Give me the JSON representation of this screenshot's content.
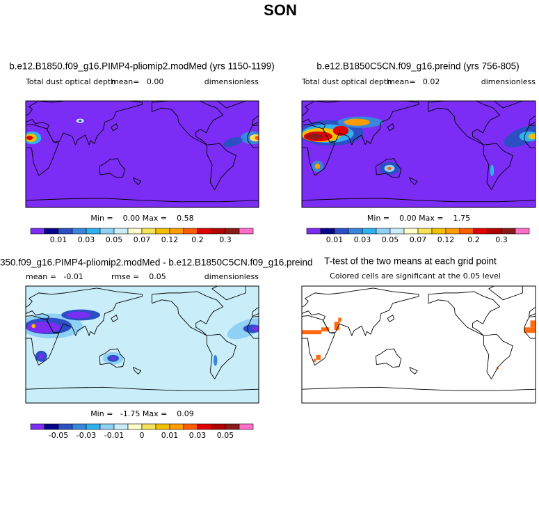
{
  "title": "SON",
  "panels": [
    {
      "title": "b.e12.B1850.f09_g16.PIMP4-pliomip2.modMed (yrs 1150-1199)",
      "left": "Total dust optical depth",
      "center": "mean=   0.00",
      "right": "dimensionless",
      "stats": "Min =    0.00 Max =    0.58",
      "colorbar": {
        "colors": [
          "#7b2cf5",
          "#06068c",
          "#2d4fc6",
          "#3a86dc",
          "#2fb2ef",
          "#8fd0f5",
          "#c9eefa",
          "#fffccc",
          "#f6e25a",
          "#f2c000",
          "#ff9c00",
          "#ff5c00",
          "#e00000",
          "#b00000",
          "#8b1a1a",
          "#ff6ec7"
        ],
        "labels": [
          "0.01",
          "0.03",
          "0.05",
          "0.07",
          "0.12",
          "0.2",
          "0.3"
        ]
      }
    },
    {
      "title": "b.e12.B1850C5CN.f09_g16.preind (yrs 756-805)",
      "left": "Total dust optical depth",
      "center": "mean=   0.02",
      "right": "dimensionless",
      "stats": "Min =    0.00 Max =    1.75",
      "colorbar": {
        "colors": [
          "#7b2cf5",
          "#06068c",
          "#2d4fc6",
          "#3a86dc",
          "#2fb2ef",
          "#8fd0f5",
          "#c9eefa",
          "#fffccc",
          "#f6e25a",
          "#f2c000",
          "#ff9c00",
          "#ff5c00",
          "#e00000",
          "#b00000",
          "#8b1a1a",
          "#ff6ec7"
        ],
        "labels": [
          "0.01",
          "0.03",
          "0.05",
          "0.07",
          "0.12",
          "0.2",
          "0.3"
        ]
      }
    },
    {
      "title": "350.f09_g16.PIMP4-pliomip2.modMed - b.e12.B1850C5CN.f09_g16.preind",
      "left": "mean =   -0.01",
      "center": "rmse =    0.05",
      "right": "dimensionless",
      "stats": "Min =   -1.75 Max =    0.09",
      "colorbar": {
        "colors": [
          "#7b2cf5",
          "#06068c",
          "#2d4fc6",
          "#3a86dc",
          "#2fb2ef",
          "#8fd0f5",
          "#c9eefa",
          "#fffccc",
          "#f6e25a",
          "#f2c000",
          "#ff9c00",
          "#ff5c00",
          "#e00000",
          "#b00000",
          "#8b1a1a",
          "#ff6ec7"
        ],
        "labels": [
          "-0.05",
          "-0.03",
          "-0.01",
          "0",
          "0.01",
          "0.03",
          "0.05"
        ]
      }
    },
    {
      "title": "T-test of the two means at each grid point",
      "center": "Colored cells are significant at the 0.05 level"
    }
  ]
}
